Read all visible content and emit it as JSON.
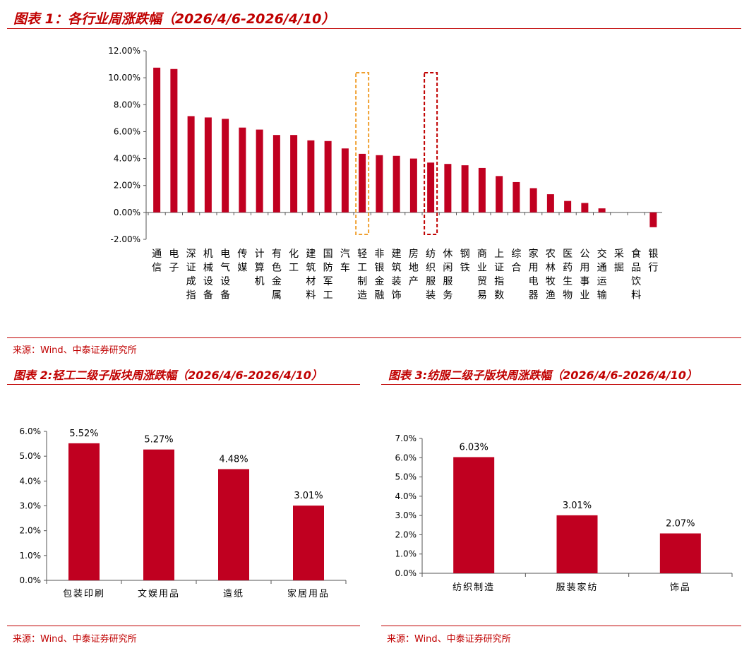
{
  "fig1": {
    "title": "图表 1：各行业周涨跌幅（2026/4/6-2026/4/10）",
    "source": "来源：Wind、中泰证券研究所"
  },
  "fig2": {
    "title": "图表 2:轻工二级子版块周涨跌幅（2026/4/6-2026/4/10）",
    "source": "来源：Wind、中泰证券研究所"
  },
  "fig3": {
    "title": "图表 3:纺服二级子版块周涨跌幅（2026/4/6-2026/4/10）",
    "source": "来源：Wind、中泰证券研究所"
  },
  "colors": {
    "bar": "#c00020",
    "title": "#c00000",
    "highlight_orange": "#f0a030",
    "highlight_red": "#c00000"
  },
  "chart_data": [
    {
      "type": "bar",
      "categories": [
        "通信",
        "电子",
        "深证成指",
        "机械设备",
        "电气设备",
        "传媒",
        "计算机",
        "有色金属",
        "化工",
        "建筑材料",
        "国防军工",
        "汽车",
        "轻工制造",
        "非银金融",
        "建筑装饰",
        "房地产",
        "纺织服装",
        "休闲服务",
        "钢铁",
        "商业贸易",
        "上证指数",
        "综合",
        "家用电器",
        "农林牧渔",
        "医药生物",
        "公用事业",
        "交通运输",
        "采掘",
        "食品饮料",
        "银行"
      ],
      "values": [
        10.75,
        10.65,
        7.15,
        7.05,
        6.95,
        6.3,
        6.15,
        5.75,
        5.75,
        5.35,
        5.3,
        4.75,
        4.35,
        4.25,
        4.2,
        4.0,
        3.7,
        3.6,
        3.5,
        3.3,
        2.7,
        2.25,
        1.8,
        1.35,
        0.85,
        0.7,
        0.3,
        0.0,
        0.0,
        -1.1
      ],
      "ylim": [
        -2,
        12
      ],
      "yticks": [
        "-2.00%",
        "0.00%",
        "2.00%",
        "4.00%",
        "6.00%",
        "8.00%",
        "10.00%",
        "12.00%"
      ],
      "highlights": [
        "轻工制造",
        "纺织服装"
      ]
    },
    {
      "type": "bar",
      "categories": [
        "包装印刷",
        "文娱用品",
        "造纸",
        "家居用品"
      ],
      "values": [
        5.52,
        5.27,
        4.48,
        3.01
      ],
      "labels": [
        "5.52%",
        "5.27%",
        "4.48%",
        "3.01%"
      ],
      "ylim": [
        0,
        6
      ],
      "yticks": [
        "0.0%",
        "1.0%",
        "2.0%",
        "3.0%",
        "4.0%",
        "5.0%",
        "6.0%"
      ]
    },
    {
      "type": "bar",
      "categories": [
        "纺织制造",
        "服装家纺",
        "饰品"
      ],
      "values": [
        6.03,
        3.01,
        2.07
      ],
      "labels": [
        "6.03%",
        "3.01%",
        "2.07%"
      ],
      "ylim": [
        0,
        7
      ],
      "yticks": [
        "0.0%",
        "1.0%",
        "2.0%",
        "3.0%",
        "4.0%",
        "5.0%",
        "6.0%",
        "7.0%"
      ]
    }
  ]
}
